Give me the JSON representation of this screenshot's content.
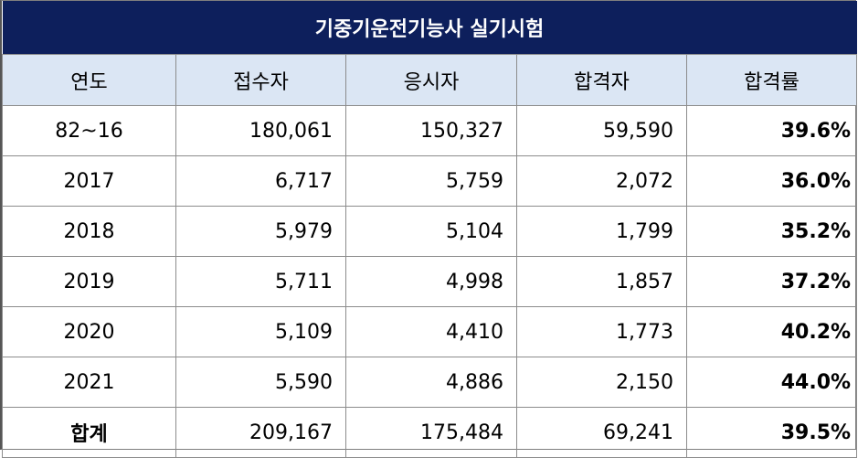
{
  "title": "기중기운전기능사 실기시험",
  "headers": [
    "연도",
    "접수자",
    "응시자",
    "합격자",
    "합격률"
  ],
  "rows": [
    {
      "year": "82~16",
      "applicants": "180,061",
      "examinees": "150,327",
      "passed": "59,590",
      "rate": "39.6%"
    },
    {
      "year": "2017",
      "applicants": "6,717",
      "examinees": "5,759",
      "passed": "2,072",
      "rate": "36.0%"
    },
    {
      "year": "2018",
      "applicants": "5,979",
      "examinees": "5,104",
      "passed": "1,799",
      "rate": "35.2%"
    },
    {
      "year": "2019",
      "applicants": "5,711",
      "examinees": "4,998",
      "passed": "1,857",
      "rate": "37.2%"
    },
    {
      "year": "2020",
      "applicants": "5,109",
      "examinees": "4,410",
      "passed": "1,773",
      "rate": "40.2%"
    },
    {
      "year": "2021",
      "applicants": "5,590",
      "examinees": "4,886",
      "passed": "2,150",
      "rate": "44.0%"
    },
    {
      "year": "합계",
      "applicants": "209,167",
      "examinees": "175,484",
      "passed": "69,241",
      "rate": "39.5%"
    }
  ],
  "colors": {
    "title_bg": "#0d1f5c",
    "header_bg": "#dbe6f4"
  }
}
